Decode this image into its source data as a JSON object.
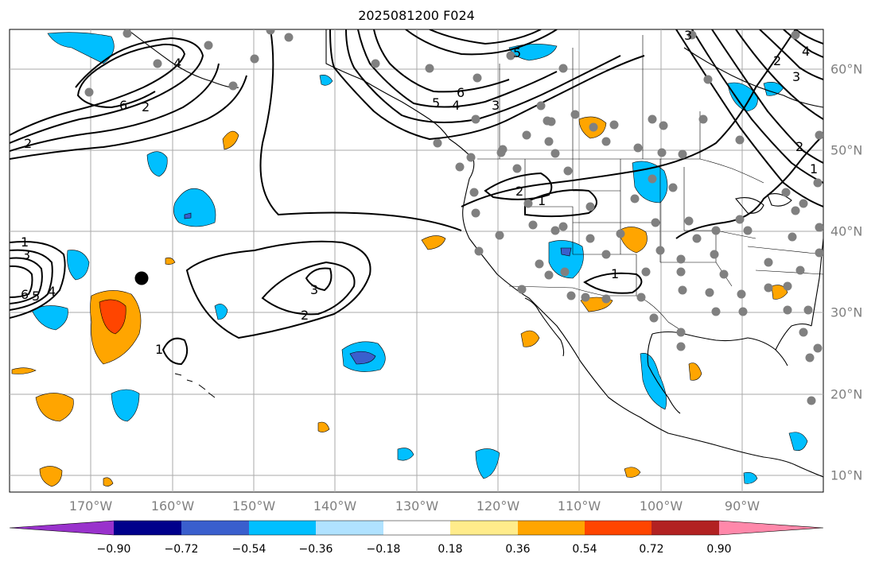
{
  "title": "2025081200 F024",
  "colors": {
    "ocean": "#ffffff",
    "grid": "#aaaaaa",
    "coast": "#000000",
    "station": "#808080",
    "marker": "#000000"
  },
  "longitude_labels": [
    "170°W",
    "160°W",
    "150°W",
    "140°W",
    "130°W",
    "120°W",
    "110°W",
    "100°W",
    "90°W"
  ],
  "latitude_labels": [
    "60°N",
    "50°N",
    "40°N",
    "30°N",
    "20°N",
    "10°N"
  ],
  "contour_labels": [
    "1",
    "3",
    "6",
    "5",
    "4",
    "2",
    "6",
    "2",
    "4",
    "5",
    "6",
    "4",
    "5",
    "3",
    "3",
    "2",
    "1",
    "2",
    "1",
    "1",
    "2",
    "3",
    "4",
    "3",
    "2",
    "1"
  ],
  "colorbar": {
    "ticks": [
      "−0.90",
      "−0.72",
      "−0.54",
      "−0.36",
      "−0.18",
      "0.18",
      "0.36",
      "0.54",
      "0.72",
      "0.90"
    ],
    "colors": [
      "#9932cc",
      "#00008b",
      "#3a5fcd",
      "#00bfff",
      "#b0e2ff",
      "#ffffff",
      "#ffec8b",
      "#ffa500",
      "#ff4500",
      "#b22222",
      "#ff88aa"
    ]
  }
}
